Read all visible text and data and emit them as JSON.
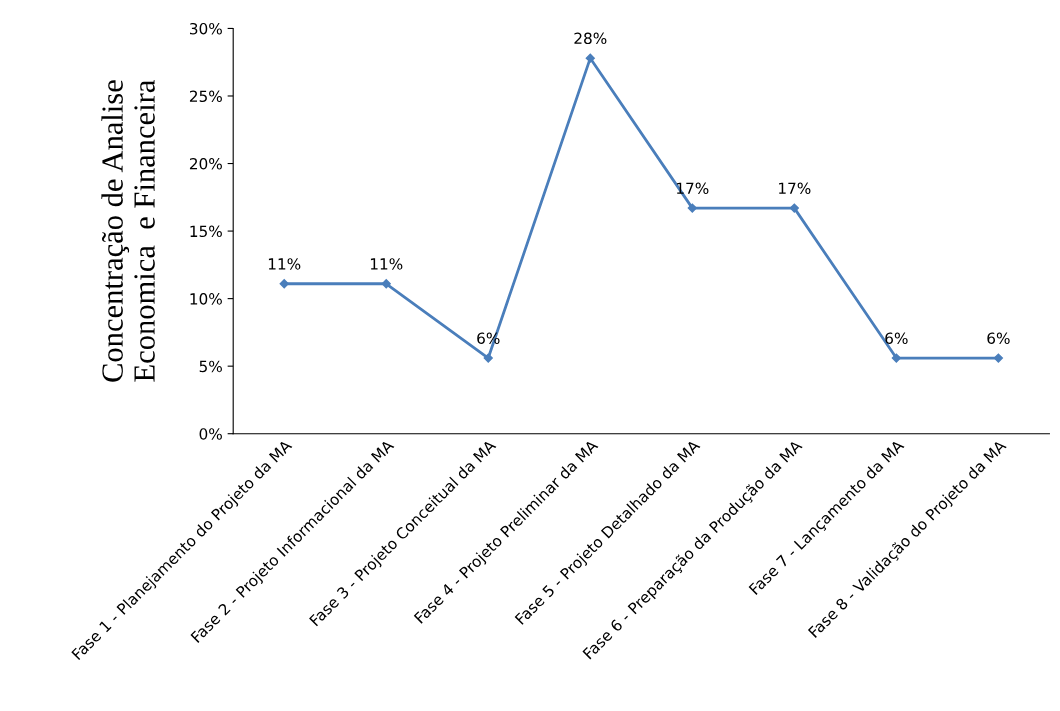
{
  "chart_data": {
    "type": "line",
    "ylabel": "Concentração de Analise\nEconomica  e Financeira",
    "categories": [
      "Fase 1 - Planejamento do Projeto da MA",
      "Fase 2 - Projeto Informacional da MA",
      "Fase 3 - Projeto Conceitual da MA",
      "Fase 4 - Projeto Preliminar da MA",
      "Fase 5 - Projeto Detalhado da MA",
      "Fase 6 - Preparação da Produção da MA",
      "Fase 7 - Lançamento da MA",
      "Fase 8 - Validação do Projeto da MA"
    ],
    "series": [
      {
        "color": "#4a7ebb",
        "values": [
          11.1,
          11.1,
          5.6,
          27.8,
          16.7,
          16.7,
          5.6,
          5.6
        ],
        "value_labels": [
          "11%",
          "11%",
          "6%",
          "28%",
          "17%",
          "17%",
          "6%",
          "6%"
        ]
      }
    ],
    "ylim": [
      0,
      30
    ],
    "yticks": [
      {
        "value": 0,
        "label": "0%"
      },
      {
        "value": 5,
        "label": "5%"
      },
      {
        "value": 10,
        "label": "10%"
      },
      {
        "value": 15,
        "label": "15%"
      },
      {
        "value": 20,
        "label": "20%"
      },
      {
        "value": 25,
        "label": "25%"
      },
      {
        "value": 30,
        "label": "30%"
      }
    ],
    "marker": "diamond",
    "line_style": "solid",
    "grid": false,
    "legend": false
  }
}
